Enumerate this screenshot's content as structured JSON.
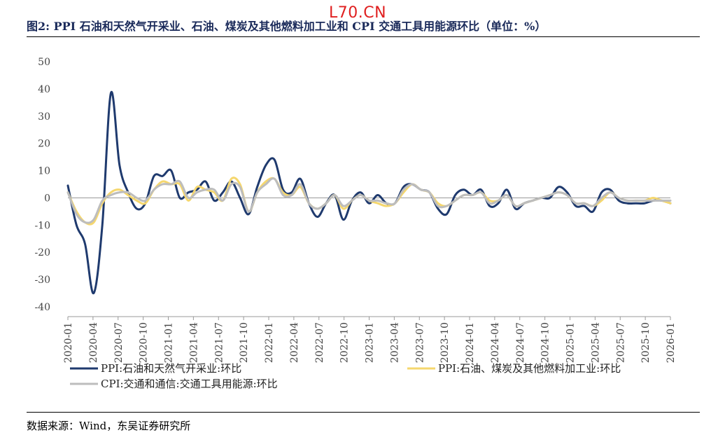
{
  "watermark": "L70.CN",
  "title": "图2:  PPI 石油和天然气开采业、石油、煤炭及其他燃料加工业和 CPI  交通工具用能源环比（单位：%）",
  "source": "数据来源：Wind，东吴证券研究所",
  "colors": {
    "navy": "#1f3a6e",
    "yellow": "#f5d76e",
    "gray": "#bdbdbd"
  },
  "chart_data": {
    "type": "line",
    "title": "PPI 石油和天然气开采业、石油、煤炭及其他燃料加工业和 CPI 交通工具用能源环比",
    "ylabel": "%",
    "ylim": [
      -40,
      50
    ],
    "yticks": [
      50,
      40,
      30,
      20,
      10,
      0,
      -10,
      -20,
      -30,
      -40
    ],
    "xticks": [
      "2020-01",
      "2020-04",
      "2020-07",
      "2020-10",
      "2021-01",
      "2021-04",
      "2021-07",
      "2021-10",
      "2022-01",
      "2022-04",
      "2022-07",
      "2022-10",
      "2023-01",
      "2023-04",
      "2023-07",
      "2023-10",
      "2024-01",
      "2024-04",
      "2024-07",
      "2024-10",
      "2025-01",
      "2025-04",
      "2025-07",
      "2025-10",
      "2026-01"
    ],
    "legend_position": "bottom",
    "series": [
      {
        "name": "PPI:石油和天然气开采业:环比",
        "color": "#1f3a6e",
        "values": [
          4.5,
          -10,
          -17,
          -35,
          -10,
          38.5,
          12,
          2,
          -4,
          -2,
          8,
          8,
          10,
          0,
          2,
          3,
          6,
          -1,
          2,
          6,
          0,
          -6,
          4,
          12,
          14,
          3,
          2,
          7,
          -2,
          -7,
          -2,
          1,
          -8,
          -1,
          2,
          -2,
          1,
          -2,
          -2,
          4,
          5,
          3,
          2,
          -4,
          -6,
          1,
          3,
          1,
          3,
          -3,
          -2,
          3,
          -4,
          -2,
          -1,
          0,
          0,
          4,
          2,
          -3,
          -3,
          -5,
          2,
          3,
          -1,
          -2,
          -2,
          -2,
          -1,
          -1,
          -2
        ]
      },
      {
        "name": "PPI:石油、煤炭及其他燃料加工业:环比",
        "color": "#f5d76e",
        "values": [
          2,
          -5,
          -9,
          -9,
          -2,
          2,
          3,
          1,
          -1,
          -2,
          3,
          6,
          5,
          5,
          -1,
          4,
          3,
          2,
          -1,
          7,
          5,
          -5,
          2,
          6,
          7,
          2,
          1,
          4,
          -2,
          -4,
          -2,
          1,
          -4,
          -1,
          1,
          -1,
          -2,
          -3,
          -2,
          2,
          5,
          3,
          2,
          -2,
          -3,
          -1,
          1,
          1,
          2,
          -1,
          -1,
          1,
          -3,
          -2,
          -1,
          0,
          1,
          2,
          1,
          -2,
          -2,
          -3,
          -1,
          2,
          0,
          -1,
          -1,
          -1,
          0,
          -1,
          -2
        ]
      },
      {
        "name": "CPI:交通和通信:交通工具用能源:环比",
        "color": "#bdbdbd",
        "values": [
          2,
          -6,
          -9,
          -8,
          -1,
          1,
          2,
          2,
          0,
          -1,
          3,
          5,
          5,
          6,
          0,
          2,
          3,
          3,
          -1,
          5,
          4,
          -5,
          2,
          5,
          7,
          1,
          1,
          5,
          -2,
          -4,
          -2,
          1,
          -3,
          -1,
          1,
          -1,
          -1,
          -2,
          -2,
          3,
          5,
          3,
          2,
          -3,
          -3,
          -1,
          1,
          1,
          2,
          -2,
          -1,
          1,
          -3,
          -2,
          -1,
          0,
          1,
          2,
          1,
          -2,
          -2,
          -3,
          0,
          2,
          0,
          -1,
          -1,
          -1,
          -1,
          -1,
          -1
        ]
      }
    ]
  }
}
